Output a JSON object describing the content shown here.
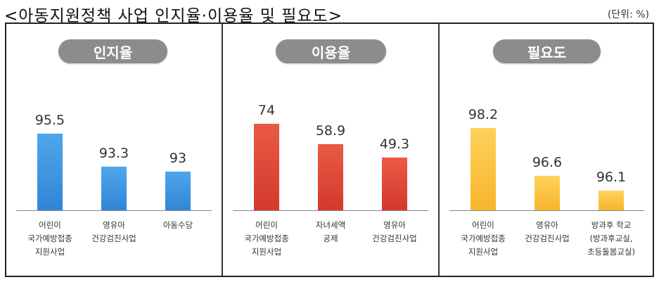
{
  "header": {
    "title": "<아동지원정책 사업 인지율·이용율 및 필요도>",
    "unit": "(단위: %)"
  },
  "chart_data": [
    {
      "type": "bar",
      "title": "인지율",
      "categories": [
        "어린이\n국가예방접종\n지원사업",
        "영유아\n건강검진사업",
        "아동수당"
      ],
      "values": [
        95.5,
        93.3,
        93
      ],
      "value_labels": [
        "95.5",
        "93.3",
        "93"
      ],
      "ylim": [
        90.4,
        96.5
      ],
      "color_top": "#4fa6ea",
      "color_bottom": "#2f86d6"
    },
    {
      "type": "bar",
      "title": "이용율",
      "categories": [
        "어린이\n국가예방접종\n지원사업",
        "자녀세액\n공제",
        "영유아\n건강검진사업"
      ],
      "values": [
        74,
        58.9,
        49.3
      ],
      "value_labels": [
        "74",
        "58.9",
        "49.3"
      ],
      "ylim": [
        11,
        77.5
      ],
      "color_top": "#ea5a45",
      "color_bottom": "#d23a2c"
    },
    {
      "type": "bar",
      "title": "필요도",
      "categories": [
        "어린이\n국가예방접종\n지원사업",
        "영유아\n건강검진사업",
        "방과후 학교\n(방과후교실,\n초등돌봄교실)"
      ],
      "values": [
        98.2,
        96.6,
        96.1
      ],
      "value_labels": [
        "98.2",
        "96.6",
        "96.1"
      ],
      "ylim": [
        95.45,
        98.5
      ],
      "color_top": "#ffd25a",
      "color_bottom": "#f7b52c"
    }
  ]
}
